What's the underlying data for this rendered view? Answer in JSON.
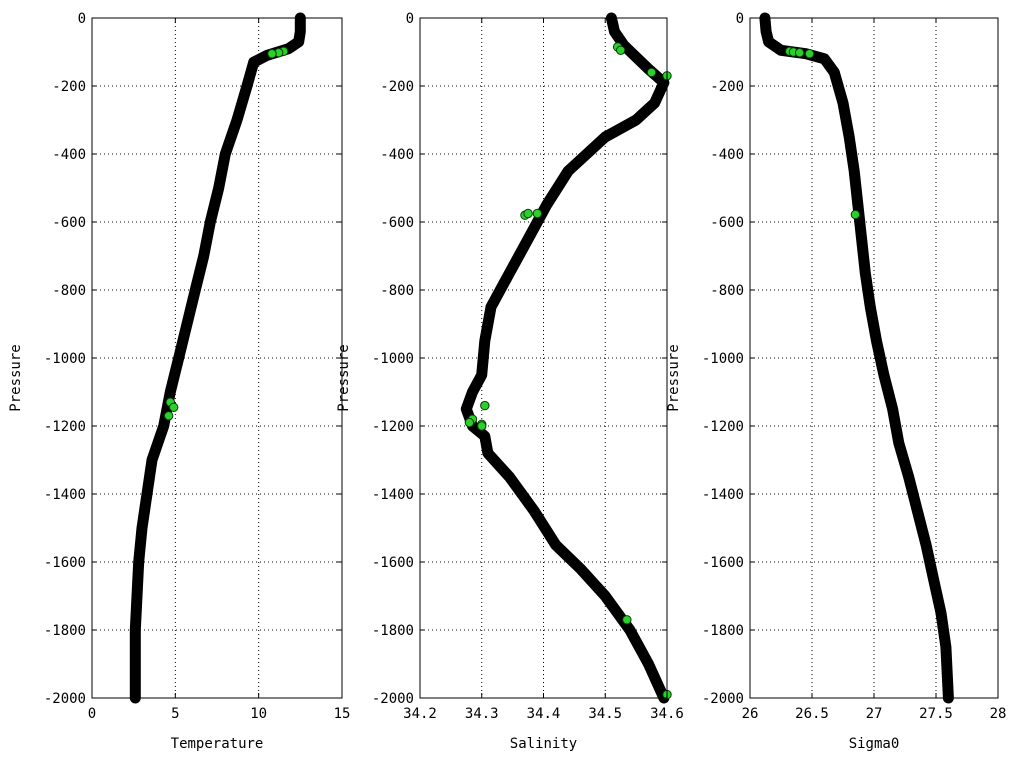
{
  "chart_data": [
    {
      "type": "scatter",
      "xlabel": "Temperature",
      "ylabel": "Pressure",
      "xlim": [
        0,
        15
      ],
      "ylim": [
        -2000,
        0
      ],
      "xticks": [
        0,
        5,
        10,
        15
      ],
      "yticks": [
        0,
        -200,
        -400,
        -600,
        -800,
        -1000,
        -1200,
        -1400,
        -1600,
        -1800,
        -2000
      ],
      "grid": true,
      "series": [
        {
          "x": [
            12.5,
            12.5,
            12.4,
            11.8,
            10.5,
            9.7,
            9.3,
            8.7,
            8.0,
            7.6,
            7.1,
            6.7,
            6.2,
            5.7,
            5.2,
            4.7,
            4.3,
            3.6,
            3.3,
            3.0,
            2.8,
            2.7,
            2.6,
            2.6
          ],
          "y": [
            0,
            -40,
            -70,
            -90,
            -110,
            -130,
            -200,
            -300,
            -400,
            -500,
            -600,
            -700,
            -800,
            -900,
            -1000,
            -1100,
            -1200,
            -1300,
            -1400,
            -1500,
            -1600,
            -1700,
            -1800,
            -2000
          ],
          "color": "#000000"
        },
        {
          "x": [
            11.5,
            11.2,
            10.8,
            4.7,
            4.9,
            4.6
          ],
          "y": [
            -98,
            -102,
            -105,
            -1130,
            -1145,
            -1170
          ],
          "color": "#2bd12b"
        }
      ]
    },
    {
      "type": "scatter",
      "xlabel": "Salinity",
      "ylabel": "Pressure",
      "xlim": [
        34.2,
        34.6
      ],
      "ylim": [
        -2000,
        0
      ],
      "xticks": [
        34.2,
        34.3,
        34.4,
        34.5,
        34.6
      ],
      "yticks": [
        0,
        -200,
        -400,
        -600,
        -800,
        -1000,
        -1200,
        -1400,
        -1600,
        -1800,
        -2000
      ],
      "grid": true,
      "series": [
        {
          "x": [
            34.51,
            34.515,
            34.53,
            34.57,
            34.595,
            34.58,
            34.55,
            34.5,
            34.44,
            34.405,
            34.375,
            34.345,
            34.315,
            34.305,
            34.3,
            34.285,
            34.275,
            34.285,
            34.305,
            34.31,
            34.345,
            34.385,
            34.42,
            34.46,
            34.5,
            34.54,
            34.57,
            34.595
          ],
          "y": [
            0,
            -40,
            -80,
            -150,
            -190,
            -250,
            -300,
            -350,
            -450,
            -550,
            -650,
            -750,
            -850,
            -950,
            -1050,
            -1100,
            -1150,
            -1200,
            -1230,
            -1280,
            -1350,
            -1450,
            -1550,
            -1620,
            -1700,
            -1800,
            -1900,
            -2000
          ],
          "color": "#000000"
        },
        {
          "x": [
            34.52,
            34.525,
            34.575,
            34.6,
            34.37,
            34.375,
            34.39,
            34.285,
            34.28,
            34.3,
            34.305,
            34.3,
            34.535,
            34.6
          ],
          "y": [
            -85,
            -95,
            -160,
            -170,
            -580,
            -575,
            -575,
            -1180,
            -1190,
            -1195,
            -1140,
            -1200,
            -1770,
            -1990
          ],
          "color": "#2bd12b"
        }
      ]
    },
    {
      "type": "scatter",
      "xlabel": "Sigma0",
      "ylabel": "Pressure",
      "xlim": [
        26,
        28
      ],
      "ylim": [
        -2000,
        0
      ],
      "xticks": [
        26,
        26.5,
        27,
        27.5,
        28
      ],
      "yticks": [
        0,
        -200,
        -400,
        -600,
        -800,
        -1000,
        -1200,
        -1400,
        -1600,
        -1800,
        -2000
      ],
      "grid": true,
      "series": [
        {
          "x": [
            26.12,
            26.13,
            26.15,
            26.25,
            26.45,
            26.6,
            26.68,
            26.75,
            26.8,
            26.84,
            26.87,
            26.9,
            26.93,
            26.97,
            27.02,
            27.08,
            27.15,
            27.2,
            27.28,
            27.35,
            27.42,
            27.48,
            27.54,
            27.58,
            27.6
          ],
          "y": [
            0,
            -40,
            -70,
            -95,
            -105,
            -120,
            -160,
            -250,
            -350,
            -450,
            -550,
            -650,
            -750,
            -850,
            -950,
            -1050,
            -1150,
            -1250,
            -1350,
            -1450,
            -1550,
            -1650,
            -1750,
            -1850,
            -2000
          ],
          "color": "#000000"
        },
        {
          "x": [
            26.32,
            26.35,
            26.4,
            26.48,
            26.85
          ],
          "y": [
            -98,
            -100,
            -102,
            -105,
            -578
          ],
          "color": "#2bd12b"
        }
      ]
    }
  ]
}
